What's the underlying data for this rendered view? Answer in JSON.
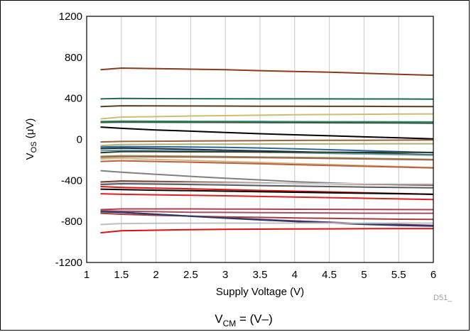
{
  "chart_data": {
    "type": "line",
    "xlabel": "Supply Voltage (V)",
    "ylabel": {
      "main": "V",
      "sub": "OS",
      "unit": " (μV)"
    },
    "caption": {
      "main": "V",
      "sub": "CM",
      "rest": " = (V–)"
    },
    "figure_code": "D51_",
    "xlim": [
      1,
      6
    ],
    "ylim": [
      -1200,
      1200
    ],
    "x_ticks": [
      "1",
      "1.5",
      "2",
      "2.5",
      "3",
      "3.5",
      "4",
      "4.5",
      "5",
      "5.5",
      "6"
    ],
    "y_ticks": [
      "1200",
      "800",
      "400",
      "0",
      "-400",
      "-800",
      "-1200"
    ],
    "grid": "vertical",
    "x": [
      1.2,
      1.5,
      2,
      2.5,
      3,
      3.5,
      4,
      4.5,
      5,
      5.5,
      6
    ],
    "series": [
      {
        "color": "#8b3a1a",
        "values": [
          680,
          695,
          690,
          685,
          680,
          670,
          662,
          655,
          645,
          635,
          625
        ]
      },
      {
        "color": "#1e6b52",
        "values": [
          395,
          400,
          398,
          397,
          396,
          395,
          395,
          395,
          394,
          394,
          393
        ]
      },
      {
        "color": "#5a4020",
        "values": [
          320,
          328,
          327,
          326,
          325,
          324,
          323,
          322,
          322,
          321,
          320
        ]
      },
      {
        "color": "#c8c070",
        "values": [
          200,
          218,
          222,
          228,
          232,
          236,
          240,
          243,
          245,
          247,
          248
        ]
      },
      {
        "color": "#2a8a6a",
        "values": [
          175,
          178,
          177,
          176,
          175,
          174,
          173,
          172,
          172,
          171,
          170
        ]
      },
      {
        "color": "#3a5a40",
        "values": [
          165,
          168,
          167,
          166,
          165,
          164,
          163,
          162,
          161,
          160,
          158
        ]
      },
      {
        "color": "#000000",
        "values": [
          120,
          108,
          92,
          80,
          68,
          55,
          45,
          35,
          25,
          15,
          5
        ]
      },
      {
        "color": "#a06040",
        "values": [
          -25,
          -20,
          -18,
          -16,
          -14,
          -12,
          -10,
          -9,
          -8,
          -7,
          -6
        ]
      },
      {
        "color": "#b0b070",
        "values": [
          -60,
          -50,
          -48,
          -47,
          -46,
          -45,
          -44,
          -44,
          -43,
          -42,
          -42
        ]
      },
      {
        "color": "#2a6a9a",
        "values": [
          -75,
          -70,
          -72,
          -74,
          -78,
          -84,
          -92,
          -100,
          -110,
          -120,
          -130
        ]
      },
      {
        "color": "#1a2a40",
        "values": [
          -90,
          -85,
          -90,
          -97,
          -105,
          -112,
          -120,
          -128,
          -135,
          -142,
          -150
        ]
      },
      {
        "color": "#6a9aa0",
        "values": [
          -110,
          -105,
          -108,
          -112,
          -118,
          -124,
          -130,
          -136,
          -142,
          -148,
          -155
        ]
      },
      {
        "color": "#2a3a28",
        "values": [
          -130,
          -120,
          -120,
          -121,
          -122,
          -123,
          -124,
          -125,
          -126,
          -126,
          -127
        ]
      },
      {
        "color": "#8a9040",
        "values": [
          -165,
          -160,
          -162,
          -165,
          -168,
          -172,
          -176,
          -180,
          -185,
          -190,
          -195
        ]
      },
      {
        "color": "#a06858",
        "values": [
          -175,
          -168,
          -170,
          -172,
          -175,
          -178,
          -182,
          -186,
          -190,
          -195,
          -200
        ]
      },
      {
        "color": "#d0b880",
        "values": [
          -190,
          -185,
          -195,
          -205,
          -215,
          -225,
          -235,
          -245,
          -255,
          -265,
          -275
        ]
      },
      {
        "color": "#b86040",
        "values": [
          -215,
          -208,
          -215,
          -222,
          -230,
          -238,
          -246,
          -254,
          -262,
          -270,
          -278
        ]
      },
      {
        "color": "#808080",
        "values": [
          -305,
          -320,
          -340,
          -360,
          -378,
          -395,
          -412,
          -425,
          -435,
          -442,
          -448
        ]
      },
      {
        "color": "#7a3a2a",
        "values": [
          -415,
          -405,
          -410,
          -415,
          -420,
          -425,
          -430,
          -434,
          -438,
          -440,
          -442
        ]
      },
      {
        "color": "#d0d0d0",
        "values": [
          -430,
          -420,
          -422,
          -424,
          -426,
          -428,
          -430,
          -432,
          -433,
          -434,
          -435
        ]
      },
      {
        "color": "#5a5a60",
        "values": [
          -440,
          -432,
          -436,
          -440,
          -445,
          -450,
          -455,
          -460,
          -465,
          -468,
          -472
        ]
      },
      {
        "color": "#e01010",
        "values": [
          -460,
          -468,
          -475,
          -482,
          -490,
          -498,
          -505,
          -512,
          -520,
          -528,
          -535
        ]
      },
      {
        "color": "#000000",
        "values": [
          -485,
          -490,
          -495,
          -500,
          -505,
          -510,
          -515,
          -520,
          -525,
          -530,
          -535
        ]
      },
      {
        "color": "#e02020",
        "values": [
          -530,
          -535,
          -540,
          -545,
          -550,
          -556,
          -562,
          -568,
          -574,
          -580,
          -586
        ]
      },
      {
        "color": "#b04050",
        "values": [
          -685,
          -678,
          -678,
          -678,
          -679,
          -680,
          -681,
          -682,
          -683,
          -684,
          -685
        ]
      },
      {
        "color": "#a05060",
        "values": [
          -695,
          -700,
          -705,
          -710,
          -712,
          -714,
          -716,
          -718,
          -719,
          -720,
          -720
        ]
      },
      {
        "color": "#6a2a6a",
        "values": [
          -705,
          -712,
          -730,
          -748,
          -765,
          -780,
          -795,
          -808,
          -820,
          -830,
          -838
        ]
      },
      {
        "color": "#a04040",
        "values": [
          -720,
          -730,
          -740,
          -748,
          -755,
          -760,
          -766,
          -770,
          -774,
          -778,
          -780
        ]
      },
      {
        "color": "#2a3a6a",
        "values": [
          -705,
          -710,
          -730,
          -750,
          -768,
          -785,
          -800,
          -815,
          -828,
          -838,
          -846
        ]
      },
      {
        "color": "#c0c0c0",
        "values": [
          -830,
          -820,
          -818,
          -817,
          -816,
          -816,
          -816,
          -816,
          -816,
          -816,
          -816
        ]
      },
      {
        "color": "#e01010",
        "values": [
          -910,
          -890,
          -885,
          -880,
          -877,
          -875,
          -873,
          -872,
          -871,
          -870,
          -870
        ]
      }
    ]
  }
}
